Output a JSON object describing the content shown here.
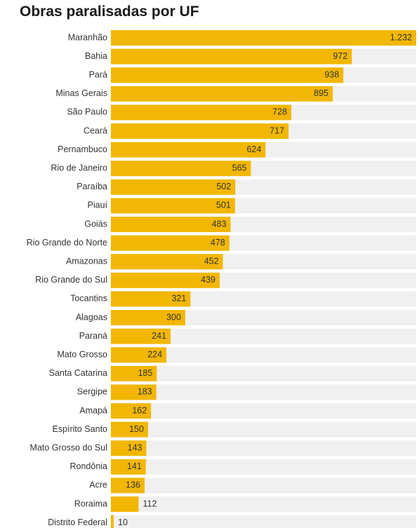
{
  "chart_data": {
    "type": "bar",
    "orientation": "horizontal",
    "title": "Obras paralisadas por UF",
    "categories": [
      "Maranhão",
      "Bahia",
      "Pará",
      "Minas Gerais",
      "São Paulo",
      "Ceará",
      "Pernambuco",
      "Rio de Janeiro",
      "Paraíba",
      "Piauí",
      "Goiás",
      "Rio Grande do Norte",
      "Amazonas",
      "Rio Grande do Sul",
      "Tocantins",
      "Alagoas",
      "Paraná",
      "Mato Grosso",
      "Santa Catarina",
      "Sergipe",
      "Amapá",
      "Espírito Santo",
      "Mato Grosso do Sul",
      "Rondônia",
      "Acre",
      "Roraima",
      "Distrito Federal"
    ],
    "values": [
      1232,
      972,
      938,
      895,
      728,
      717,
      624,
      565,
      502,
      501,
      483,
      478,
      452,
      439,
      321,
      300,
      241,
      224,
      185,
      183,
      162,
      150,
      143,
      141,
      136,
      112,
      10
    ],
    "value_labels": [
      "1.232",
      "972",
      "938",
      "895",
      "728",
      "717",
      "624",
      "565",
      "502",
      "501",
      "483",
      "478",
      "452",
      "439",
      "321",
      "300",
      "241",
      "224",
      "185",
      "183",
      "162",
      "150",
      "143",
      "141",
      "136",
      "112",
      "10"
    ],
    "xlim": [
      0,
      1232
    ],
    "bar_color": "#f2b705",
    "track_color": "#f0f0f0",
    "grid": false
  }
}
